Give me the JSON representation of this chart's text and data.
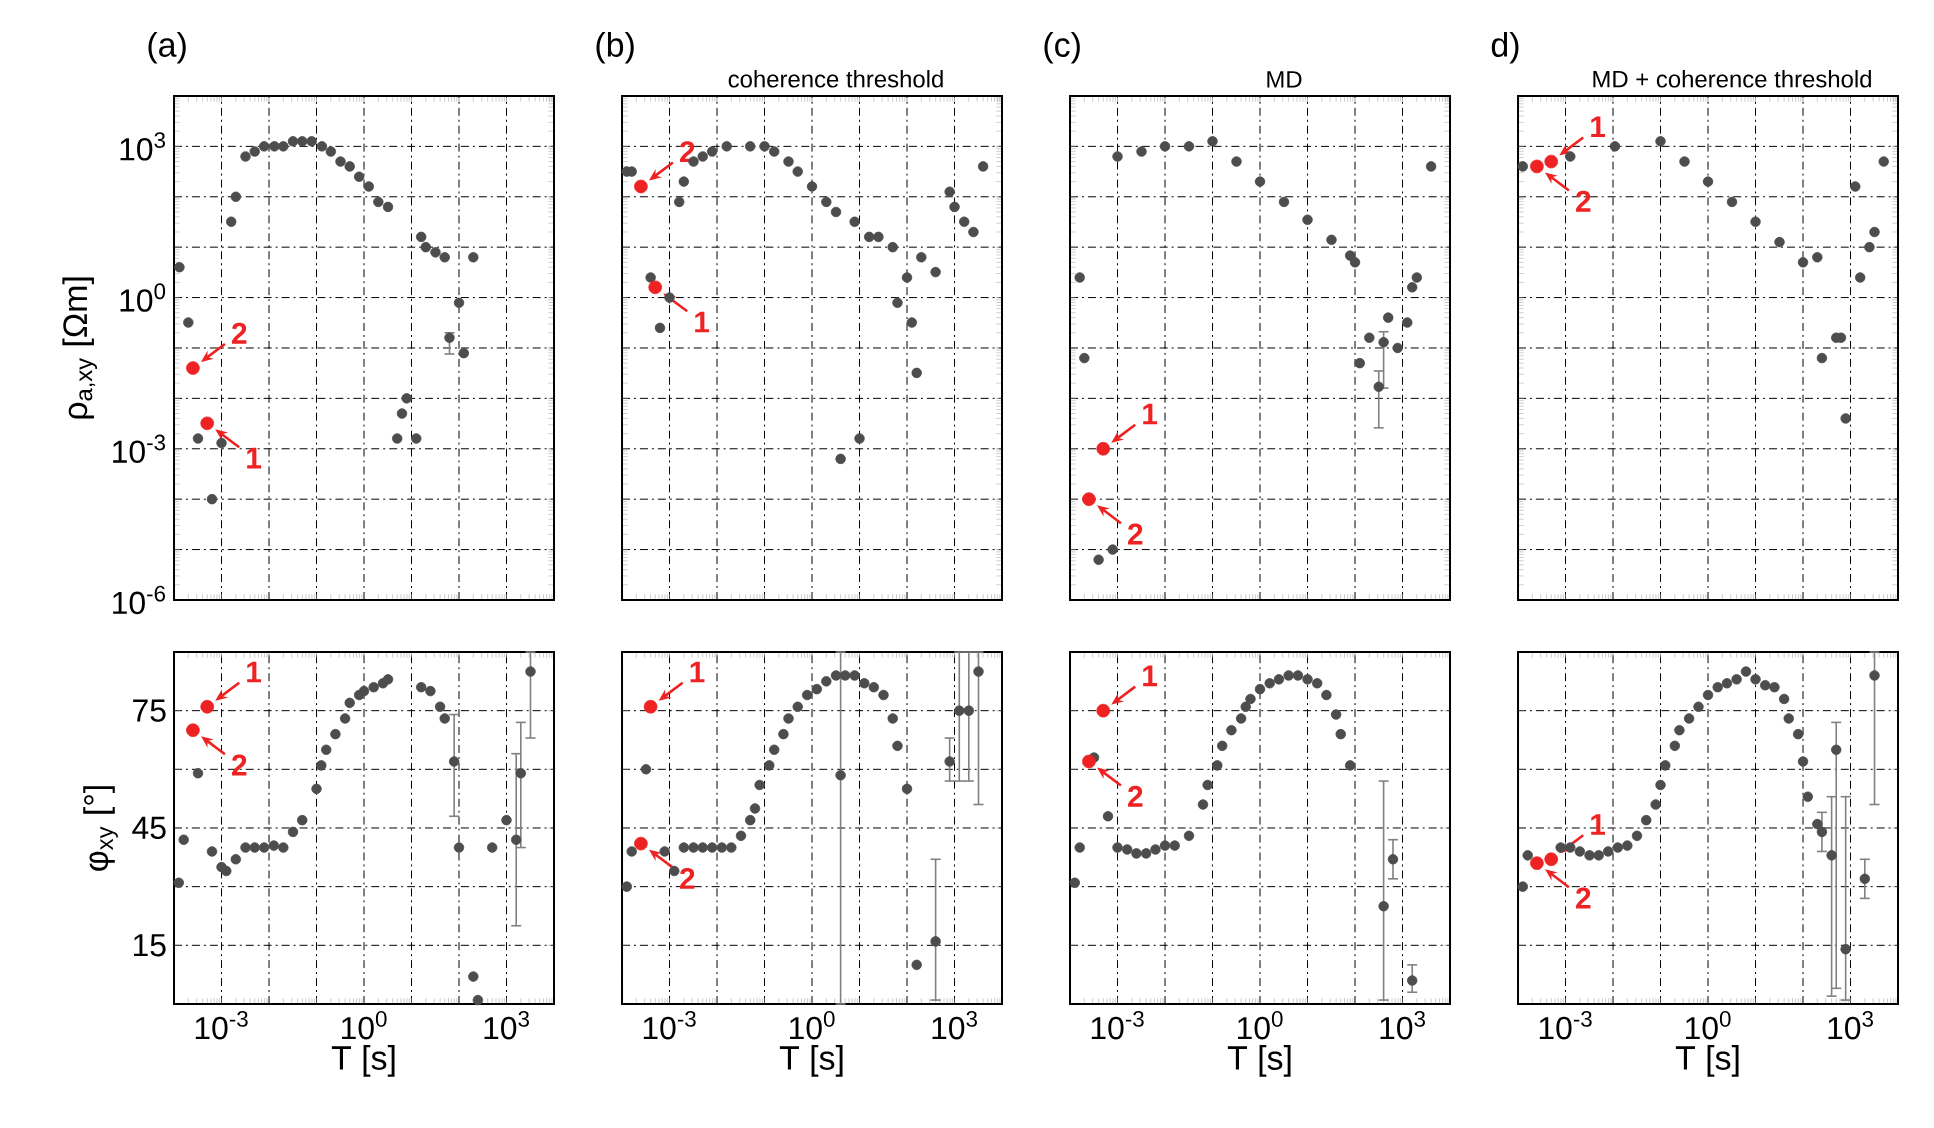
{
  "chart_data": [
    {
      "type": "scatter",
      "title": "(a)",
      "ylabel": "ρ$_{a,xy}$ [Ωm]",
      "log": "xy",
      "grid": true,
      "tick_labels": "y",
      "xlim": [
        0.0001,
        10000
      ],
      "ylim": [
        1e-06,
        10000
      ],
      "xticks": [
        {
          "value": 0.0001,
          "label": null
        },
        {
          "value": 0.001,
          "label": null
        },
        {
          "value": 0.01,
          "label": null
        },
        {
          "value": 0.1,
          "label": null
        },
        {
          "value": 1,
          "label": null
        },
        {
          "value": 10,
          "label": null
        },
        {
          "value": 100,
          "label": null
        },
        {
          "value": 1000,
          "label": null
        },
        {
          "value": 10000,
          "label": null
        }
      ],
      "yticks": [
        {
          "value": 1e-06,
          "label": "10$^{-6}$"
        },
        {
          "value": 1e-05,
          "label": null
        },
        {
          "value": 0.0001,
          "label": null
        },
        {
          "value": 0.001,
          "label": "10$^{-3}$"
        },
        {
          "value": 0.01,
          "label": null
        },
        {
          "value": 0.1,
          "label": null
        },
        {
          "value": 1,
          "label": "10$^{0}$"
        },
        {
          "value": 10,
          "label": null
        },
        {
          "value": 100,
          "label": null
        },
        {
          "value": 1000,
          "label": "10$^{3}$"
        },
        {
          "value": 10000,
          "label": null
        }
      ],
      "series": [
        {
          "color": "#4d4d4d",
          "x": [
            0.00013,
            0.0002,
            0.00032,
            0.00063,
            0.001,
            0.0016,
            0.002,
            0.0032,
            0.005,
            0.0079,
            0.013,
            0.02,
            0.032,
            0.05,
            0.079,
            0.13,
            0.2,
            0.32,
            0.5,
            0.79,
            1.26,
            2,
            3.2,
            5,
            6.3,
            7.9,
            12.6,
            16,
            20,
            32,
            50,
            63,
            100,
            126,
            200
          ],
          "values": [
            4,
            0.32,
            0.0016,
            0.0001,
            0.0013,
            32,
            100,
            630,
            790,
            1000,
            1000,
            1000,
            1260,
            1260,
            1260,
            1000,
            790,
            500,
            400,
            250,
            160,
            79,
            63,
            0.0016,
            0.005,
            0.01,
            0.0016,
            16,
            10,
            7.9,
            6.3,
            0.16,
            0.79,
            0.079,
            6.3
          ],
          "errors": [
            null,
            null,
            null,
            null,
            null,
            null,
            null,
            null,
            null,
            null,
            null,
            null,
            null,
            null,
            null,
            null,
            null,
            null,
            null,
            null,
            null,
            null,
            null,
            null,
            null,
            null,
            null,
            null,
            null,
            null,
            null,
            [
              0.076,
              0.2
            ],
            null,
            null,
            null
          ]
        },
        {
          "color": "#ee2222",
          "x": [
            0.00025,
            0.0005
          ],
          "values": [
            0.04,
            0.0032
          ]
        }
      ],
      "annotations": [
        {
          "text": "1",
          "x": 0.0005,
          "y": 0.0032
        },
        {
          "text": "2",
          "x": 0.00025,
          "y": 0.04
        }
      ]
    },
    {
      "type": "scatter",
      "title": "(b)",
      "subtitle": "coherence threshold",
      "log": "xy",
      "grid": true,
      "tick_labels": false,
      "xlim": [
        0.0001,
        10000
      ],
      "ylim": [
        1e-06,
        10000
      ],
      "xticks": [
        {
          "value": 0.0001,
          "label": null
        },
        {
          "value": 0.001,
          "label": null
        },
        {
          "value": 0.01,
          "label": null
        },
        {
          "value": 0.1,
          "label": null
        },
        {
          "value": 1,
          "label": null
        },
        {
          "value": 10,
          "label": null
        },
        {
          "value": 100,
          "label": null
        },
        {
          "value": 1000,
          "label": null
        },
        {
          "value": 10000,
          "label": null
        }
      ],
      "yticks": [
        {
          "value": 1e-06,
          "label": null
        },
        {
          "value": 1e-05,
          "label": null
        },
        {
          "value": 0.0001,
          "label": null
        },
        {
          "value": 0.001,
          "label": null
        },
        {
          "value": 0.01,
          "label": null
        },
        {
          "value": 0.1,
          "label": null
        },
        {
          "value": 1,
          "label": null
        },
        {
          "value": 10,
          "label": null
        },
        {
          "value": 100,
          "label": null
        },
        {
          "value": 1000,
          "label": null
        },
        {
          "value": 10000,
          "label": null
        }
      ],
      "series": [
        {
          "color": "#4d4d4d",
          "x": [
            0.000126,
            0.00016,
            0.0004,
            0.00063,
            0.001,
            0.0016,
            0.002,
            0.0032,
            0.005,
            0.0079,
            0.016,
            0.05,
            0.1,
            0.16,
            0.32,
            0.5,
            1,
            2,
            3.2,
            7.9,
            16,
            25,
            50,
            63,
            100,
            126,
            160,
            200,
            400,
            4,
            10,
            790,
            1000,
            1600,
            2500,
            4000
          ],
          "values": [
            316,
            316,
            2.5,
            0.25,
            1,
            79,
            200,
            500,
            630,
            790,
            1000,
            1000,
            1000,
            790,
            500,
            316,
            160,
            79,
            50,
            32,
            16,
            16,
            10,
            0.79,
            2.5,
            0.32,
            0.032,
            6.3,
            3.2,
            0.00063,
            0.0016,
            126,
            63,
            32,
            20,
            400
          ]
        },
        {
          "color": "#ee2222",
          "x": [
            0.00025,
            0.0005
          ],
          "values": [
            160,
            1.6
          ]
        }
      ],
      "annotations": [
        {
          "text": "1",
          "x": 0.0005,
          "y": 1.6
        },
        {
          "text": "2",
          "x": 0.00025,
          "y": 160
        }
      ]
    },
    {
      "type": "scatter",
      "title": "(c)",
      "subtitle": "MD",
      "log": "xy",
      "grid": true,
      "tick_labels": false,
      "xlim": [
        0.0001,
        10000
      ],
      "ylim": [
        1e-06,
        10000
      ],
      "xticks": [
        {
          "value": 0.0001,
          "label": null
        },
        {
          "value": 0.001,
          "label": null
        },
        {
          "value": 0.01,
          "label": null
        },
        {
          "value": 0.1,
          "label": null
        },
        {
          "value": 1,
          "label": null
        },
        {
          "value": 10,
          "label": null
        },
        {
          "value": 100,
          "label": null
        },
        {
          "value": 1000,
          "label": null
        },
        {
          "value": 10000,
          "label": null
        }
      ],
      "yticks": [
        {
          "value": 1e-06,
          "label": null
        },
        {
          "value": 1e-05,
          "label": null
        },
        {
          "value": 0.0001,
          "label": null
        },
        {
          "value": 0.001,
          "label": null
        },
        {
          "value": 0.01,
          "label": null
        },
        {
          "value": 0.1,
          "label": null
        },
        {
          "value": 1,
          "label": null
        },
        {
          "value": 10,
          "label": null
        },
        {
          "value": 100,
          "label": null
        },
        {
          "value": 1000,
          "label": null
        },
        {
          "value": 10000,
          "label": null
        }
      ],
      "series": [
        {
          "color": "#4d4d4d",
          "x": [
            0.00016,
            0.0002,
            0.0004,
            0.00079,
            0.001,
            0.0032,
            0.01,
            0.032,
            0.1,
            0.32,
            1,
            3.2,
            10,
            32,
            79,
            100,
            126,
            200,
            316,
            400,
            500,
            790,
            1260,
            1600,
            2000,
            4000
          ],
          "values": [
            2.5,
            0.063,
            6.3e-06,
            1e-05,
            630,
            790,
            1000,
            1000,
            1260,
            500,
            200,
            79,
            35,
            14,
            6.8,
            5,
            0.05,
            0.16,
            0.017,
            0.13,
            0.4,
            0.1,
            0.32,
            1.6,
            2.5,
            400
          ],
          "errors": [
            null,
            null,
            null,
            null,
            null,
            null,
            null,
            null,
            null,
            null,
            null,
            null,
            null,
            null,
            null,
            null,
            null,
            null,
            [
              0.0026,
              0.035
            ],
            [
              0.016,
              0.21
            ],
            null,
            null,
            null,
            null,
            null,
            null
          ]
        },
        {
          "color": "#ee2222",
          "x": [
            0.00025,
            0.0005
          ],
          "values": [
            0.0001,
            0.001
          ]
        }
      ],
      "annotations": [
        {
          "text": "1",
          "x": 0.0005,
          "y": 0.001
        },
        {
          "text": "2",
          "x": 0.00025,
          "y": 0.0001
        }
      ]
    },
    {
      "type": "scatter",
      "title": "d)",
      "subtitle": "MD + coherence threshold",
      "log": "xy",
      "grid": true,
      "tick_labels": false,
      "xlim": [
        0.0001,
        10000
      ],
      "ylim": [
        1e-06,
        10000
      ],
      "xticks": [
        {
          "value": 0.0001,
          "label": null
        },
        {
          "value": 0.001,
          "label": null
        },
        {
          "value": 0.01,
          "label": null
        },
        {
          "value": 0.1,
          "label": null
        },
        {
          "value": 1,
          "label": null
        },
        {
          "value": 10,
          "label": null
        },
        {
          "value": 100,
          "label": null
        },
        {
          "value": 1000,
          "label": null
        },
        {
          "value": 10000,
          "label": null
        }
      ],
      "yticks": [
        {
          "value": 1e-06,
          "label": null
        },
        {
          "value": 1e-05,
          "label": null
        },
        {
          "value": 0.0001,
          "label": null
        },
        {
          "value": 0.001,
          "label": null
        },
        {
          "value": 0.01,
          "label": null
        },
        {
          "value": 0.1,
          "label": null
        },
        {
          "value": 1,
          "label": null
        },
        {
          "value": 10,
          "label": null
        },
        {
          "value": 100,
          "label": null
        },
        {
          "value": 1000,
          "label": null
        },
        {
          "value": 10000,
          "label": null
        }
      ],
      "series": [
        {
          "color": "#4d4d4d",
          "x": [
            0.000126,
            0.00126,
            0.011,
            0.1,
            0.32,
            1,
            3.2,
            10,
            32,
            100,
            200,
            1260,
            1600,
            2500,
            3200,
            250,
            500,
            630,
            790,
            5000
          ],
          "values": [
            400,
            630,
            1000,
            1260,
            500,
            200,
            79,
            32,
            12.6,
            5,
            6.3,
            160,
            2.5,
            10,
            20,
            0.063,
            0.16,
            0.16,
            0.004,
            500
          ]
        },
        {
          "color": "#ee2222",
          "x": [
            0.00025,
            0.0005
          ],
          "values": [
            400,
            500
          ]
        }
      ],
      "annotations": [
        {
          "text": "1",
          "x": 0.0005,
          "y": 500
        },
        {
          "text": "2",
          "x": 0.00025,
          "y": 400
        }
      ]
    },
    {
      "type": "scatter",
      "xlabel": "T [s]",
      "ylabel": "φ$_{xy}$ [°]",
      "log": "x",
      "grid": true,
      "xlim": [
        0.0001,
        10000
      ],
      "ylim": [
        0,
        90
      ],
      "xticks": [
        {
          "value": 0.0001,
          "label": null
        },
        {
          "value": 0.001,
          "label": "10$^{-3}$"
        },
        {
          "value": 0.01,
          "label": null
        },
        {
          "value": 0.1,
          "label": null
        },
        {
          "value": 1,
          "label": "10$^{0}$"
        },
        {
          "value": 10,
          "label": null
        },
        {
          "value": 100,
          "label": null
        },
        {
          "value": 1000,
          "label": "10$^{3}$"
        },
        {
          "value": 10000,
          "label": null
        }
      ],
      "yticks": [
        {
          "value": 0,
          "label": null
        },
        15,
        {
          "value": 30,
          "label": null
        },
        45,
        {
          "value": 60,
          "label": null
        },
        75,
        {
          "value": 90,
          "label": null
        }
      ],
      "series": [
        {
          "color": "#4d4d4d",
          "x": [
            0.000126,
            0.00016,
            0.00032,
            0.00063,
            0.001,
            0.00126,
            0.002,
            0.0032,
            0.005,
            0.0079,
            0.0126,
            0.02,
            0.032,
            0.05,
            0.1,
            0.126,
            0.16,
            0.25,
            0.4,
            0.5,
            0.79,
            1,
            1.6,
            2.5,
            3.2,
            16,
            25,
            40,
            50,
            79,
            100,
            200,
            250,
            500,
            1000,
            1600,
            2000,
            3200
          ],
          "values": [
            31,
            42,
            59,
            39,
            35,
            34,
            37,
            40,
            40,
            40,
            40.5,
            40,
            44,
            47,
            55,
            61,
            65,
            69,
            73,
            77,
            79,
            80,
            81,
            82,
            83,
            81,
            80,
            76,
            73,
            62,
            40,
            7,
            1,
            40,
            47,
            42,
            59,
            85
          ],
          "errors": [
            null,
            null,
            null,
            null,
            null,
            null,
            null,
            null,
            null,
            null,
            null,
            null,
            null,
            null,
            null,
            null,
            null,
            null,
            null,
            null,
            null,
            null,
            null,
            null,
            null,
            null,
            null,
            null,
            null,
            [
              48,
              74
            ],
            null,
            null,
            null,
            null,
            null,
            [
              20,
              64
            ],
            [
              40,
              72
            ],
            [
              68,
              90
            ]
          ]
        },
        {
          "color": "#ee2222",
          "x": [
            0.00025,
            0.0005
          ],
          "values": [
            70,
            76
          ]
        }
      ],
      "annotations": [
        {
          "text": "1",
          "x": 0.0005,
          "y": 76
        },
        {
          "text": "2",
          "x": 0.00025,
          "y": 70
        }
      ]
    },
    {
      "type": "scatter",
      "xlabel": "T [s]",
      "log": "x",
      "grid": true,
      "tick_labels": "x",
      "xlim": [
        0.0001,
        10000
      ],
      "ylim": [
        0,
        90
      ],
      "xticks": [
        {
          "value": 0.0001,
          "label": null
        },
        {
          "value": 0.001,
          "label": "10$^{-3}$"
        },
        {
          "value": 0.01,
          "label": null
        },
        {
          "value": 0.1,
          "label": null
        },
        {
          "value": 1,
          "label": "10$^{0}$"
        },
        {
          "value": 10,
          "label": null
        },
        {
          "value": 100,
          "label": null
        },
        {
          "value": 1000,
          "label": "10$^{3}$"
        },
        {
          "value": 10000,
          "label": null
        }
      ],
      "yticks": [
        {
          "value": 0,
          "label": null
        },
        {
          "value": 15,
          "label": null
        },
        {
          "value": 30,
          "label": null
        },
        {
          "value": 45,
          "label": null
        },
        {
          "value": 60,
          "label": null
        },
        {
          "value": 75,
          "label": null
        },
        {
          "value": 90,
          "label": null
        }
      ],
      "series": [
        {
          "color": "#4d4d4d",
          "x": [
            0.000126,
            0.00016,
            0.00032,
            0.00079,
            0.00126,
            0.002,
            0.0032,
            0.005,
            0.0079,
            0.0126,
            0.02,
            0.032,
            0.05,
            0.063,
            0.079,
            0.126,
            0.16,
            0.25,
            0.32,
            0.5,
            0.79,
            1.26,
            2,
            3.2,
            4,
            5,
            7.9,
            12.6,
            20,
            32,
            50,
            63,
            100,
            160,
            400,
            790,
            1260,
            2000,
            3200
          ],
          "values": [
            30,
            39,
            60,
            39,
            34,
            40,
            40,
            40,
            40,
            40,
            40,
            43,
            47,
            50,
            56,
            61,
            65,
            69,
            73,
            76,
            79,
            80.5,
            82.5,
            84,
            58.5,
            84,
            84,
            82,
            81,
            79,
            73,
            66,
            55,
            10,
            16,
            62,
            75,
            75,
            85
          ],
          "errors": [
            null,
            null,
            null,
            null,
            null,
            null,
            null,
            null,
            null,
            null,
            null,
            null,
            null,
            null,
            null,
            null,
            null,
            null,
            null,
            null,
            null,
            null,
            null,
            null,
            [
              0,
              90
            ],
            null,
            null,
            null,
            null,
            null,
            null,
            null,
            null,
            null,
            [
              1,
              37
            ],
            [
              57,
              68
            ],
            [
              57,
              90
            ],
            [
              57,
              90
            ],
            [
              51,
              90
            ]
          ]
        },
        {
          "color": "#ee2222",
          "x": [
            0.00025,
            0.0004
          ],
          "values": [
            41,
            76
          ]
        }
      ],
      "annotations": [
        {
          "text": "1",
          "x": 0.0004,
          "y": 76
        },
        {
          "text": "2",
          "x": 0.00025,
          "y": 41
        }
      ]
    },
    {
      "type": "scatter",
      "xlabel": "T [s]",
      "log": "x",
      "grid": true,
      "tick_labels": "x",
      "xlim": [
        0.0001,
        10000
      ],
      "ylim": [
        0,
        90
      ],
      "xticks": [
        {
          "value": 0.0001,
          "label": null
        },
        {
          "value": 0.001,
          "label": "10$^{-3}$"
        },
        {
          "value": 0.01,
          "label": null
        },
        {
          "value": 0.1,
          "label": null
        },
        {
          "value": 1,
          "label": "10$^{0}$"
        },
        {
          "value": 10,
          "label": null
        },
        {
          "value": 100,
          "label": null
        },
        {
          "value": 1000,
          "label": "10$^{3}$"
        },
        {
          "value": 10000,
          "label": null
        }
      ],
      "yticks": [
        {
          "value": 0,
          "label": null
        },
        {
          "value": 15,
          "label": null
        },
        {
          "value": 30,
          "label": null
        },
        {
          "value": 45,
          "label": null
        },
        {
          "value": 60,
          "label": null
        },
        {
          "value": 75,
          "label": null
        },
        {
          "value": 90,
          "label": null
        }
      ],
      "series": [
        {
          "color": "#4d4d4d",
          "x": [
            0.000126,
            0.00016,
            0.00032,
            0.00063,
            0.001,
            0.0016,
            0.0025,
            0.004,
            0.0063,
            0.01,
            0.016,
            0.032,
            0.063,
            0.079,
            0.126,
            0.16,
            0.25,
            0.4,
            0.5,
            0.63,
            1,
            1.6,
            2.5,
            4,
            6.3,
            10,
            16,
            25,
            40,
            50,
            79,
            400,
            630,
            1600
          ],
          "values": [
            31,
            40,
            63,
            48,
            40,
            39.5,
            38.5,
            38.5,
            39.5,
            40.5,
            40.5,
            43,
            51,
            56,
            61,
            66,
            70,
            73,
            76,
            78,
            80.5,
            82,
            83,
            84,
            84,
            83,
            82,
            79,
            74,
            69,
            61,
            25,
            37,
            6
          ],
          "errors": [
            null,
            null,
            null,
            null,
            null,
            null,
            null,
            null,
            null,
            null,
            null,
            null,
            null,
            null,
            null,
            null,
            null,
            null,
            null,
            null,
            null,
            null,
            null,
            null,
            null,
            null,
            null,
            null,
            null,
            null,
            null,
            [
              1,
              57
            ],
            [
              32,
              42
            ],
            [
              3,
              10
            ]
          ]
        },
        {
          "color": "#ee2222",
          "x": [
            0.00025,
            0.0005
          ],
          "values": [
            62,
            75
          ]
        }
      ],
      "annotations": [
        {
          "text": "1",
          "x": 0.0005,
          "y": 75
        },
        {
          "text": "2",
          "x": 0.00025,
          "y": 62
        }
      ]
    },
    {
      "type": "scatter",
      "xlabel": "T [s]",
      "log": "x",
      "grid": true,
      "tick_labels": "x",
      "xlim": [
        0.0001,
        10000
      ],
      "ylim": [
        0,
        90
      ],
      "xticks": [
        {
          "value": 0.0001,
          "label": null
        },
        {
          "value": 0.001,
          "label": "10$^{-3}$"
        },
        {
          "value": 0.01,
          "label": null
        },
        {
          "value": 0.1,
          "label": null
        },
        {
          "value": 1,
          "label": "10$^{0}$"
        },
        {
          "value": 10,
          "label": null
        },
        {
          "value": 100,
          "label": null
        },
        {
          "value": 1000,
          "label": "10$^{3}$"
        },
        {
          "value": 10000,
          "label": null
        }
      ],
      "yticks": [
        {
          "value": 0,
          "label": null
        },
        {
          "value": 15,
          "label": null
        },
        {
          "value": 30,
          "label": null
        },
        {
          "value": 45,
          "label": null
        },
        {
          "value": 60,
          "label": null
        },
        {
          "value": 75,
          "label": null
        },
        {
          "value": 90,
          "label": null
        }
      ],
      "series": [
        {
          "color": "#4d4d4d",
          "x": [
            0.000126,
            0.00016,
            0.00032,
            0.00079,
            0.00126,
            0.002,
            0.0032,
            0.005,
            0.0079,
            0.0126,
            0.02,
            0.032,
            0.05,
            0.079,
            0.1,
            0.126,
            0.2,
            0.25,
            0.4,
            0.63,
            1,
            1.6,
            2.5,
            4,
            6.3,
            10,
            16,
            25,
            40,
            50,
            79,
            100,
            126,
            200,
            250,
            400,
            500,
            790,
            2000,
            3200
          ],
          "values": [
            30,
            38,
            null,
            40,
            40,
            39,
            38,
            38,
            39,
            40,
            40.5,
            43,
            47,
            51,
            56,
            61,
            66,
            70,
            73,
            76,
            79,
            81,
            82,
            83,
            85,
            83,
            81.5,
            81,
            78,
            73,
            69,
            62,
            53,
            46,
            44,
            38,
            65,
            14,
            32,
            84
          ],
          "errors": [
            null,
            null,
            null,
            null,
            null,
            null,
            null,
            null,
            null,
            null,
            null,
            null,
            null,
            null,
            null,
            null,
            null,
            null,
            null,
            null,
            null,
            null,
            null,
            null,
            null,
            null,
            null,
            null,
            null,
            null,
            null,
            null,
            null,
            null,
            [
              39,
              49
            ],
            [
              2,
              53
            ],
            [
              4,
              72
            ],
            [
              1,
              53
            ],
            [
              27,
              37
            ],
            [
              51,
              90
            ]
          ]
        },
        {
          "color": "#ee2222",
          "x": [
            0.00025,
            0.0005
          ],
          "values": [
            36,
            37
          ]
        }
      ],
      "annotations": [
        {
          "text": "1",
          "x": 0.0005,
          "y": 37
        },
        {
          "text": "2",
          "x": 0.00025,
          "y": 36
        }
      ]
    }
  ]
}
